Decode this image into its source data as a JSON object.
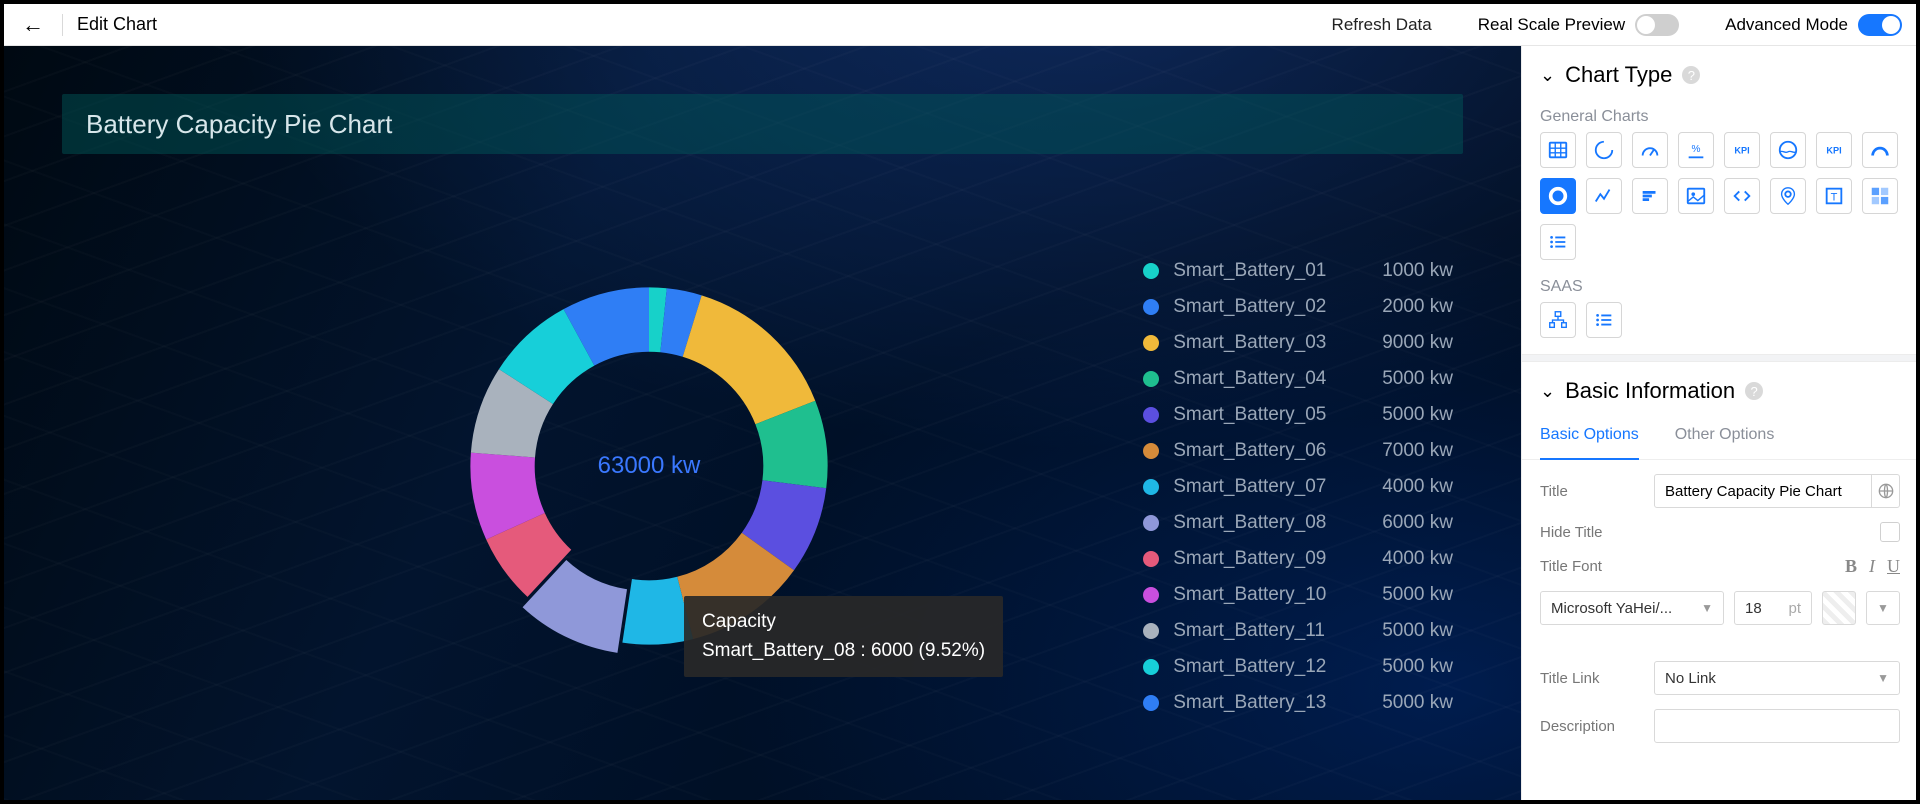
{
  "topbar": {
    "title": "Edit Chart",
    "refresh_label": "Refresh Data",
    "real_scale_label": "Real Scale Preview",
    "real_scale_on": false,
    "advanced_label": "Advanced Mode",
    "advanced_on": true
  },
  "chart": {
    "type": "donut",
    "title": "Battery Capacity Pie Chart",
    "title_bg": "rgba(0,90,90,0.45)",
    "title_color": "#d7e6ea",
    "title_fontsize": 26,
    "center_text": "63000 kw",
    "center_color": "#3a78ff",
    "center_fontsize": 24,
    "inner_radius_pct": 64,
    "background_colors": [
      "#000912",
      "#02142e",
      "#001027",
      "#000a18"
    ],
    "slices": [
      {
        "name": "Smart_Battery_01",
        "value": 1000,
        "unit": "kw",
        "color": "#17d1c9"
      },
      {
        "name": "Smart_Battery_02",
        "value": 2000,
        "unit": "kw",
        "color": "#2f7ef5"
      },
      {
        "name": "Smart_Battery_03",
        "value": 9000,
        "unit": "kw",
        "color": "#f0b93a"
      },
      {
        "name": "Smart_Battery_04",
        "value": 5000,
        "unit": "kw",
        "color": "#1fbf8f"
      },
      {
        "name": "Smart_Battery_05",
        "value": 5000,
        "unit": "kw",
        "color": "#5b4fe0"
      },
      {
        "name": "Smart_Battery_06",
        "value": 7000,
        "unit": "kw",
        "color": "#d58b3a"
      },
      {
        "name": "Smart_Battery_07",
        "value": 4000,
        "unit": "kw",
        "color": "#1fb7e6"
      },
      {
        "name": "Smart_Battery_08",
        "value": 6000,
        "unit": "kw",
        "color": "#8f98d9"
      },
      {
        "name": "Smart_Battery_09",
        "value": 4000,
        "unit": "kw",
        "color": "#e55a7b"
      },
      {
        "name": "Smart_Battery_10",
        "value": 5000,
        "unit": "kw",
        "color": "#c94fde"
      },
      {
        "name": "Smart_Battery_11",
        "value": 5000,
        "unit": "kw",
        "color": "#a9b2bd"
      },
      {
        "name": "Smart_Battery_12",
        "value": 5000,
        "unit": "kw",
        "color": "#17cfd9"
      },
      {
        "name": "Smart_Battery_13",
        "value": 5000,
        "unit": "kw",
        "color": "#2f7ef5"
      }
    ],
    "legend_text_color": "#9aa7b8",
    "legend_fontsize": 19,
    "tooltip": {
      "series_label": "Capacity",
      "slice_name": "Smart_Battery_08",
      "value": 6000,
      "percent": "9.52%",
      "bg": "rgba(40,40,40,0.92)"
    }
  },
  "panel": {
    "chart_type_heading": "Chart Type",
    "general_label": "General Charts",
    "saas_label": "SAAS",
    "general_icons": [
      "table",
      "gauge",
      "speed",
      "percent",
      "kpi",
      "liquid",
      "kpi2",
      "arc",
      "donut",
      "line",
      "bar",
      "picture",
      "code",
      "map",
      "text",
      "grid",
      "list"
    ],
    "selected_icon": "donut",
    "saas_icons": [
      "org",
      "list2"
    ],
    "basic_info_heading": "Basic Information",
    "tabs": {
      "basic": "Basic Options",
      "other": "Other Options",
      "active": "basic"
    },
    "labels": {
      "title": "Title",
      "hide_title": "Hide Title",
      "title_font": "Title Font",
      "title_link": "Title Link",
      "description": "Description"
    },
    "title_value": "Battery Capacity Pie Chart",
    "hide_title_checked": false,
    "font_family": "Microsoft YaHei/...",
    "font_size": "18",
    "font_unit": "pt",
    "title_link_value": "No Link",
    "description_value": ""
  },
  "colors": {
    "accent": "#1677ff",
    "panel_border": "#ececec",
    "muted_text": "#8a8f99"
  }
}
